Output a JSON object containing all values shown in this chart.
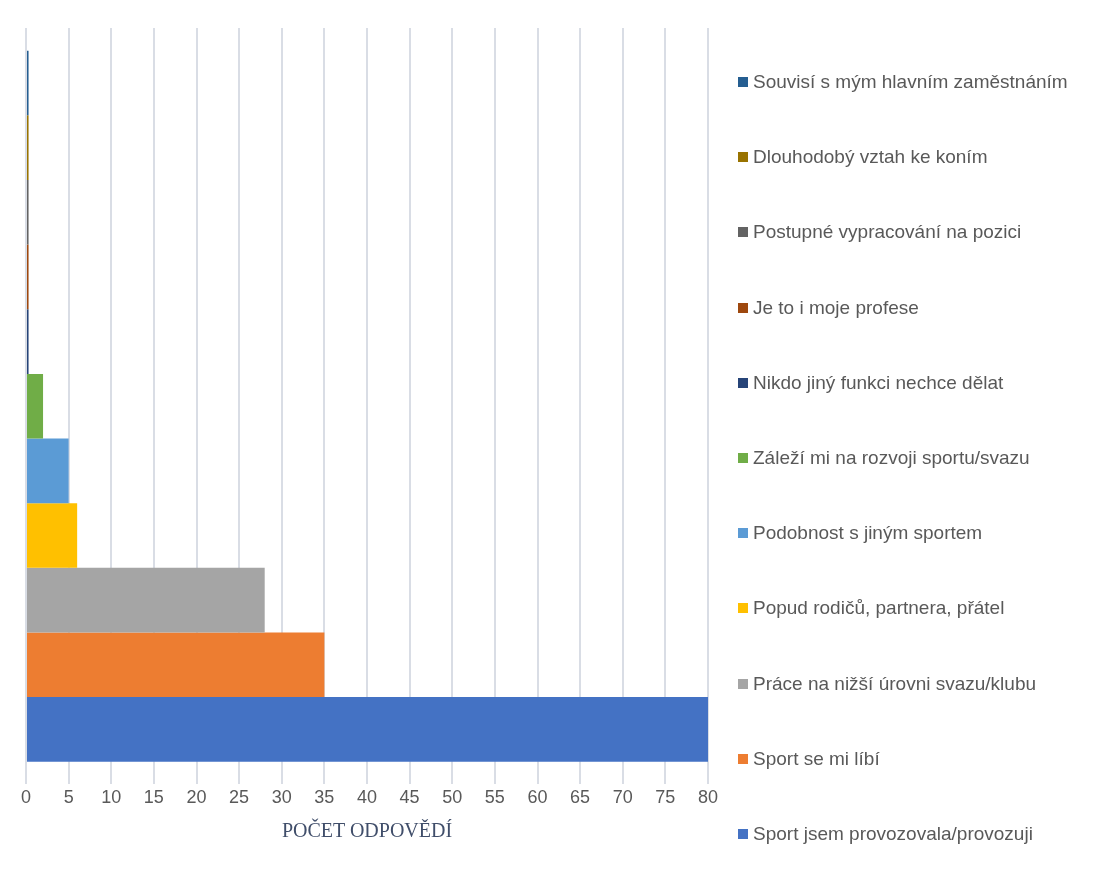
{
  "chart_data": {
    "type": "bar",
    "orientation": "horizontal",
    "xlabel": "POČET ODPOVĚDÍ",
    "categories": [
      null
    ],
    "xlim": [
      0,
      80
    ],
    "xticks": [
      0,
      5,
      10,
      15,
      20,
      25,
      30,
      35,
      40,
      45,
      50,
      55,
      60,
      65,
      70,
      75,
      80
    ],
    "grid": "x",
    "legend": "right",
    "series": [
      {
        "name": "Souvisí s mým hlavním zaměstnáním",
        "color": "#255e91",
        "values": [
          0.3
        ]
      },
      {
        "name": "Dlouhodobý vztah ke koním",
        "color": "#997300",
        "values": [
          0.3
        ]
      },
      {
        "name": "Postupné vypracování na pozici",
        "color": "#636363",
        "values": [
          0.3
        ]
      },
      {
        "name": "Je to i moje profese",
        "color": "#9e480e",
        "values": [
          0.3
        ]
      },
      {
        "name": "Nikdo jiný funkci nechce dělat",
        "color": "#264478",
        "values": [
          0.3
        ]
      },
      {
        "name": "Záleží mi na rozvoji sportu/svazu",
        "color": "#70ad47",
        "values": [
          2
        ]
      },
      {
        "name": "Podobnost s jiným sportem",
        "color": "#5b9bd5",
        "values": [
          5
        ]
      },
      {
        "name": "Popud rodičů, partnera, přátel",
        "color": "#ffc000",
        "values": [
          6
        ]
      },
      {
        "name": "Práce na nižší úrovni svazu/klubu",
        "color": "#a5a5a5",
        "values": [
          28
        ]
      },
      {
        "name": "Sport se mi líbí",
        "color": "#ed7d31",
        "values": [
          35
        ]
      },
      {
        "name": "Sport jsem provozovala/provozuji",
        "color": "#4472c4",
        "values": [
          80
        ]
      }
    ]
  }
}
